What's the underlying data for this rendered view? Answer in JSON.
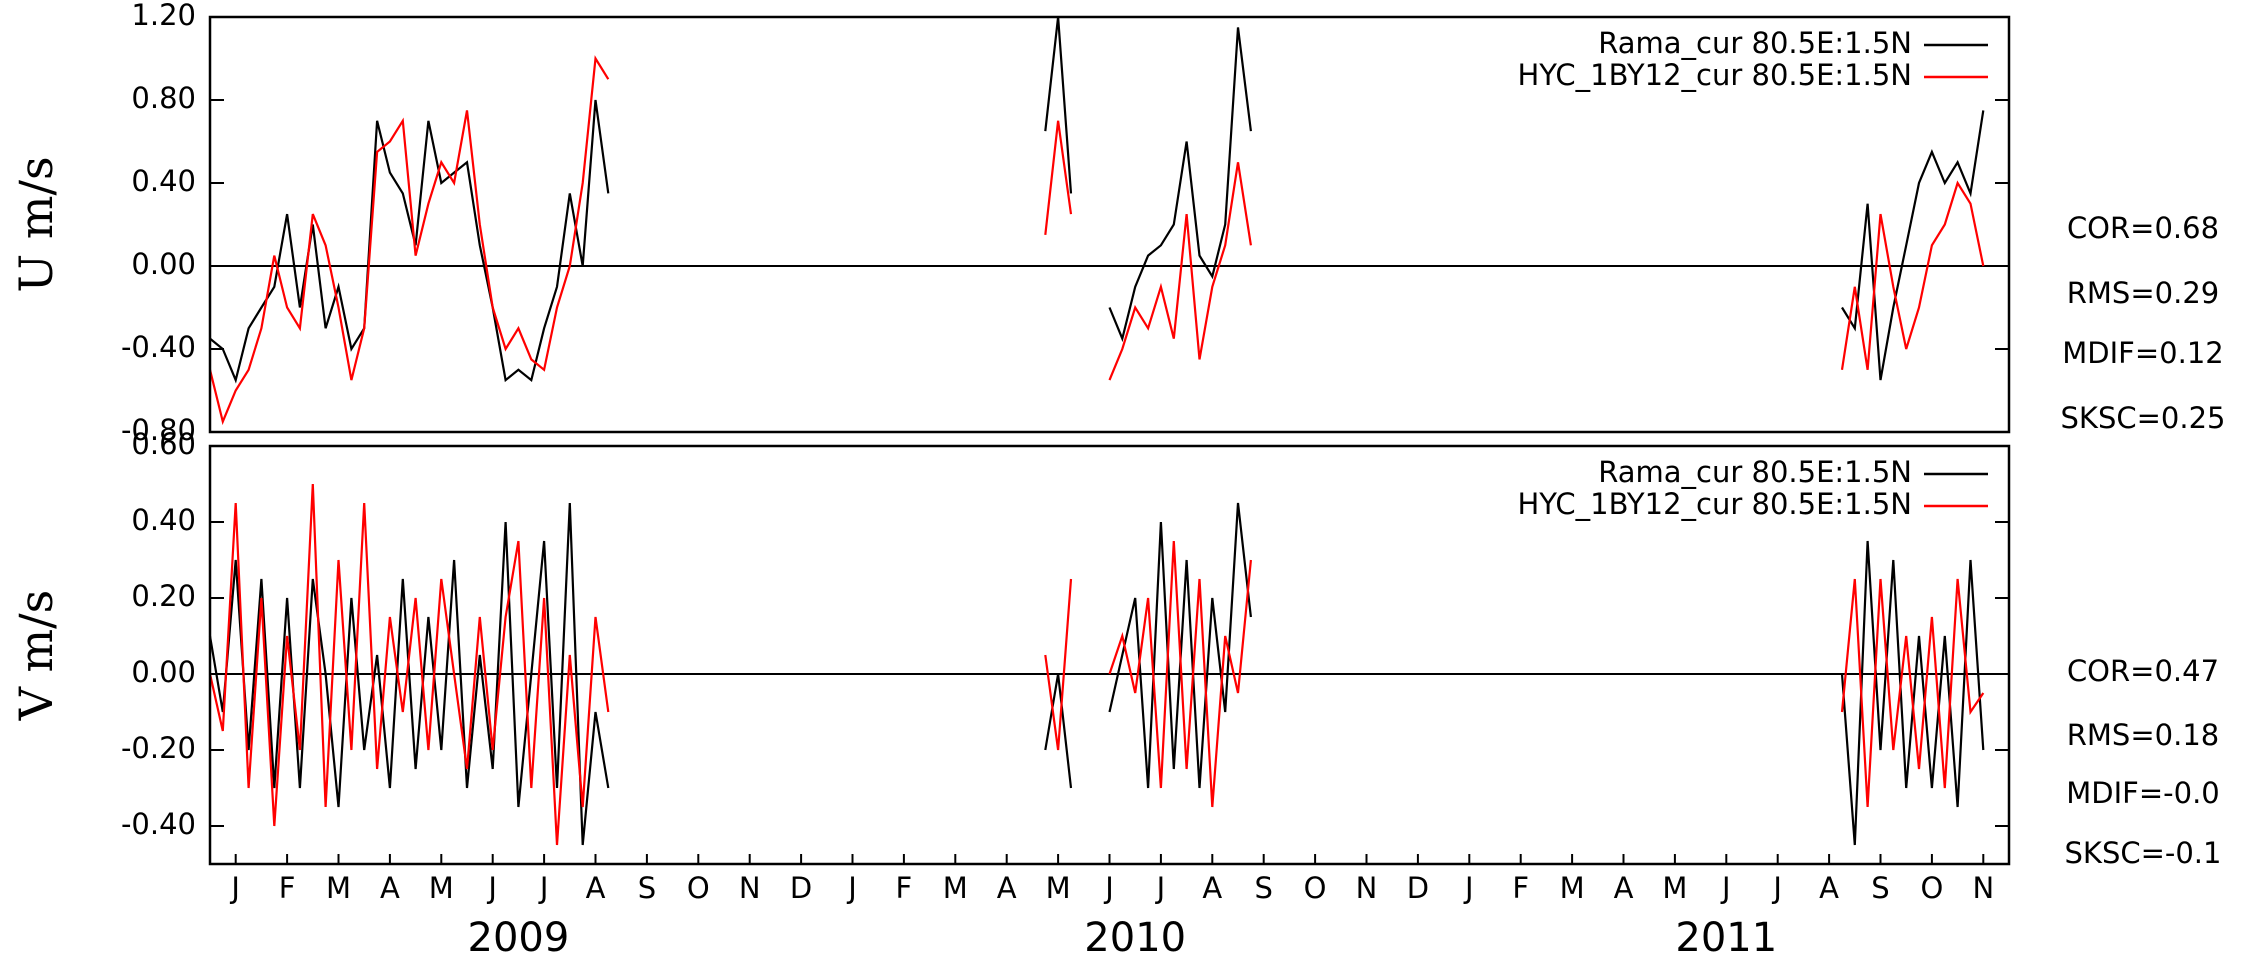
{
  "chart_data": [
    {
      "type": "line",
      "ylabel": "U m/s",
      "x": [
        0,
        0.25,
        0.5,
        0.75,
        1,
        1.25,
        1.5,
        1.75,
        2,
        2.25,
        2.5,
        2.75,
        3,
        3.25,
        3.5,
        3.75,
        4,
        4.25,
        4.5,
        4.75,
        5,
        5.25,
        5.5,
        5.75,
        6,
        6.25,
        6.5,
        6.75,
        7,
        7.25,
        7.5,
        7.75,
        12,
        16.25,
        16.5,
        16.75,
        17,
        17.5,
        17.75,
        18,
        18.25,
        18.5,
        18.75,
        19,
        19.25,
        19.5,
        19.75,
        20,
        20.25,
        26,
        31.75,
        32,
        32.25,
        32.5,
        32.75,
        33,
        33.25,
        33.5,
        33.75,
        34,
        34.25,
        34.5
      ],
      "xlim": [
        0,
        35
      ],
      "ylim": [
        -0.8,
        1.2
      ],
      "yticks": [
        {
          "value": -0.8,
          "label": "-0.80"
        },
        {
          "value": -0.4,
          "label": "-0.40"
        },
        {
          "value": 0,
          "label": "0.00"
        },
        {
          "value": 0.4,
          "label": "0.40"
        },
        {
          "value": 0.8,
          "label": "0.80"
        },
        {
          "value": 1.2,
          "label": "1.20"
        }
      ],
      "hline": 0,
      "series": [
        {
          "name": "Rama_cur 80.5E:1.5N",
          "color": "#000000",
          "values": [
            -0.35,
            -0.4,
            -0.55,
            -0.3,
            -0.2,
            -0.1,
            0.25,
            -0.2,
            0.2,
            -0.3,
            -0.1,
            -0.4,
            -0.3,
            0.7,
            0.45,
            0.35,
            0.1,
            0.7,
            0.4,
            0.45,
            0.5,
            0.1,
            -0.2,
            -0.55,
            -0.5,
            -0.55,
            -0.3,
            -0.1,
            0.35,
            0.0,
            0.8,
            0.35,
            null,
            0.65,
            1.2,
            0.35,
            null,
            -0.2,
            -0.35,
            -0.1,
            0.05,
            0.1,
            0.2,
            0.6,
            0.05,
            -0.05,
            0.2,
            1.15,
            0.65,
            null,
            -0.2,
            -0.3,
            0.3,
            -0.55,
            -0.2,
            0.1,
            0.4,
            0.55,
            0.4,
            0.5,
            0.35,
            0.75
          ]
        },
        {
          "name": "HYC_1BY12_cur 80.5E:1.5N",
          "color": "#ff0000",
          "values": [
            -0.5,
            -0.75,
            -0.6,
            -0.5,
            -0.3,
            0.05,
            -0.2,
            -0.3,
            0.25,
            0.1,
            -0.2,
            -0.55,
            -0.3,
            0.55,
            0.6,
            0.7,
            0.05,
            0.3,
            0.5,
            0.4,
            0.75,
            0.2,
            -0.2,
            -0.4,
            -0.3,
            -0.45,
            -0.5,
            -0.2,
            0.0,
            0.4,
            1.0,
            0.9,
            null,
            0.15,
            0.7,
            0.25,
            null,
            -0.55,
            -0.4,
            -0.2,
            -0.3,
            -0.1,
            -0.35,
            0.25,
            -0.45,
            -0.1,
            0.1,
            0.5,
            0.1,
            null,
            -0.5,
            -0.1,
            -0.5,
            0.25,
            -0.1,
            -0.4,
            -0.2,
            0.1,
            0.2,
            0.4,
            0.3,
            0.0
          ]
        }
      ],
      "annotations": [
        "COR=0.68",
        "RMS=0.29",
        "MDIF=0.12",
        "SKSC=0.25"
      ]
    },
    {
      "type": "line",
      "ylabel": "V m/s",
      "x": [
        0,
        0.25,
        0.5,
        0.75,
        1,
        1.25,
        1.5,
        1.75,
        2,
        2.25,
        2.5,
        2.75,
        3,
        3.25,
        3.5,
        3.75,
        4,
        4.25,
        4.5,
        4.75,
        5,
        5.25,
        5.5,
        5.75,
        6,
        6.25,
        6.5,
        6.75,
        7,
        7.25,
        7.5,
        7.75,
        12,
        16.25,
        16.5,
        16.75,
        17,
        17.5,
        17.75,
        18,
        18.25,
        18.5,
        18.75,
        19,
        19.25,
        19.5,
        19.75,
        20,
        20.25,
        26,
        31.75,
        32,
        32.25,
        32.5,
        32.75,
        33,
        33.25,
        33.5,
        33.75,
        34,
        34.25,
        34.5
      ],
      "xlim": [
        0,
        35
      ],
      "ylim": [
        -0.5,
        0.6
      ],
      "yticks": [
        {
          "value": -0.4,
          "label": "-0.40"
        },
        {
          "value": -0.2,
          "label": "-0.20"
        },
        {
          "value": 0,
          "label": "0.00"
        },
        {
          "value": 0.2,
          "label": "0.20"
        },
        {
          "value": 0.4,
          "label": "0.40"
        },
        {
          "value": 0.6,
          "label": "0.60"
        }
      ],
      "xticks": [
        {
          "value": 0.5,
          "label": "J"
        },
        {
          "value": 1.5,
          "label": "F"
        },
        {
          "value": 2.5,
          "label": "M"
        },
        {
          "value": 3.5,
          "label": "A"
        },
        {
          "value": 4.5,
          "label": "M"
        },
        {
          "value": 5.5,
          "label": "J"
        },
        {
          "value": 6.5,
          "label": "J"
        },
        {
          "value": 7.5,
          "label": "A"
        },
        {
          "value": 8.5,
          "label": "S"
        },
        {
          "value": 9.5,
          "label": "O"
        },
        {
          "value": 10.5,
          "label": "N"
        },
        {
          "value": 11.5,
          "label": "D"
        },
        {
          "value": 12.5,
          "label": "J"
        },
        {
          "value": 13.5,
          "label": "F"
        },
        {
          "value": 14.5,
          "label": "M"
        },
        {
          "value": 15.5,
          "label": "A"
        },
        {
          "value": 16.5,
          "label": "M"
        },
        {
          "value": 17.5,
          "label": "J"
        },
        {
          "value": 18.5,
          "label": "J"
        },
        {
          "value": 19.5,
          "label": "A"
        },
        {
          "value": 20.5,
          "label": "S"
        },
        {
          "value": 21.5,
          "label": "O"
        },
        {
          "value": 22.5,
          "label": "N"
        },
        {
          "value": 23.5,
          "label": "D"
        },
        {
          "value": 24.5,
          "label": "J"
        },
        {
          "value": 25.5,
          "label": "F"
        },
        {
          "value": 26.5,
          "label": "M"
        },
        {
          "value": 27.5,
          "label": "A"
        },
        {
          "value": 28.5,
          "label": "M"
        },
        {
          "value": 29.5,
          "label": "J"
        },
        {
          "value": 30.5,
          "label": "J"
        },
        {
          "value": 31.5,
          "label": "A"
        },
        {
          "value": 32.5,
          "label": "S"
        },
        {
          "value": 33.5,
          "label": "O"
        },
        {
          "value": 34.5,
          "label": "N"
        }
      ],
      "year_labels": [
        {
          "value": 6,
          "label": "2009"
        },
        {
          "value": 18,
          "label": "2010"
        },
        {
          "value": 29.5,
          "label": "2011"
        }
      ],
      "hline": 0,
      "series": [
        {
          "name": "Rama_cur 80.5E:1.5N",
          "color": "#000000",
          "values": [
            0.1,
            -0.1,
            0.3,
            -0.2,
            0.25,
            -0.3,
            0.2,
            -0.3,
            0.25,
            0.0,
            -0.35,
            0.2,
            -0.2,
            0.05,
            -0.3,
            0.25,
            -0.25,
            0.15,
            -0.2,
            0.3,
            -0.3,
            0.05,
            -0.25,
            0.4,
            -0.35,
            0.0,
            0.35,
            -0.3,
            0.45,
            -0.45,
            -0.1,
            -0.3,
            null,
            -0.2,
            0.0,
            -0.3,
            null,
            -0.1,
            0.05,
            0.2,
            -0.3,
            0.4,
            -0.25,
            0.3,
            -0.3,
            0.2,
            -0.1,
            0.45,
            0.15,
            null,
            0.0,
            -0.45,
            0.35,
            -0.2,
            0.3,
            -0.3,
            0.1,
            -0.3,
            0.1,
            -0.35,
            0.3,
            -0.2
          ]
        },
        {
          "name": "HYC_1BY12_cur 80.5E:1.5N",
          "color": "#ff0000",
          "values": [
            0.0,
            -0.15,
            0.45,
            -0.3,
            0.2,
            -0.4,
            0.1,
            -0.2,
            0.5,
            -0.35,
            0.3,
            -0.2,
            0.45,
            -0.25,
            0.15,
            -0.1,
            0.2,
            -0.2,
            0.25,
            0.0,
            -0.25,
            0.15,
            -0.2,
            0.15,
            0.35,
            -0.3,
            0.2,
            -0.45,
            0.05,
            -0.35,
            0.15,
            -0.1,
            null,
            0.05,
            -0.2,
            0.25,
            null,
            0.0,
            0.1,
            -0.05,
            0.2,
            -0.3,
            0.35,
            -0.25,
            0.25,
            -0.35,
            0.1,
            -0.05,
            0.3,
            null,
            -0.1,
            0.25,
            -0.35,
            0.25,
            -0.2,
            0.1,
            -0.25,
            0.15,
            -0.3,
            0.25,
            -0.1,
            -0.05
          ]
        }
      ],
      "annotations": [
        "COR=0.47",
        "RMS=0.18",
        "MDIF=-0.0",
        "SKSC=-0.1"
      ]
    }
  ]
}
